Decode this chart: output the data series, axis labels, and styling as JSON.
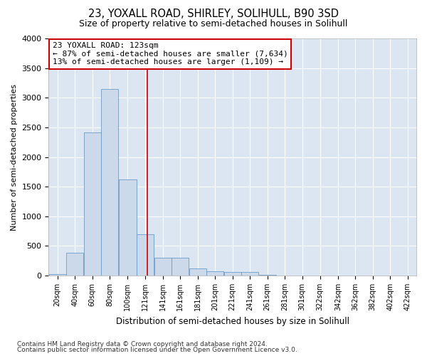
{
  "title": "23, YOXALL ROAD, SHIRLEY, SOLIHULL, B90 3SD",
  "subtitle": "Size of property relative to semi-detached houses in Solihull",
  "xlabel": "Distribution of semi-detached houses by size in Solihull",
  "ylabel": "Number of semi-detached properties",
  "footer_line1": "Contains HM Land Registry data © Crown copyright and database right 2024.",
  "footer_line2": "Contains public sector information licensed under the Open Government Licence v3.0.",
  "annotation_title": "23 YOXALL ROAD: 123sqm",
  "annotation_line1": "← 87% of semi-detached houses are smaller (7,634)",
  "annotation_line2": "13% of semi-detached houses are larger (1,109) →",
  "property_size": 123,
  "bar_color": "#ccd9ea",
  "bar_edge_color": "#6b9bc8",
  "annotation_box_color": "#ffffff",
  "annotation_box_edge": "#cc0000",
  "vline_color": "#cc0000",
  "background_color": "#ffffff",
  "plot_bg_color": "#dce6f2",
  "grid_color": "#ffffff",
  "categories": [
    "20sqm",
    "40sqm",
    "60sqm",
    "80sqm",
    "100sqm",
    "121sqm",
    "141sqm",
    "161sqm",
    "181sqm",
    "201sqm",
    "221sqm",
    "241sqm",
    "261sqm",
    "281sqm",
    "301sqm",
    "322sqm",
    "342sqm",
    "362sqm",
    "382sqm",
    "402sqm",
    "422sqm"
  ],
  "bin_edges": [
    10,
    30,
    50,
    70,
    90,
    111,
    131,
    151,
    171,
    191,
    211,
    231,
    251,
    271,
    291,
    311,
    332,
    352,
    372,
    392,
    412,
    432
  ],
  "values": [
    20,
    390,
    2420,
    3150,
    1620,
    700,
    300,
    300,
    120,
    75,
    60,
    55,
    8,
    4,
    2,
    1,
    0,
    0,
    0,
    0,
    0
  ],
  "ylim": [
    0,
    4000
  ],
  "yticks": [
    0,
    500,
    1000,
    1500,
    2000,
    2500,
    3000,
    3500,
    4000
  ]
}
